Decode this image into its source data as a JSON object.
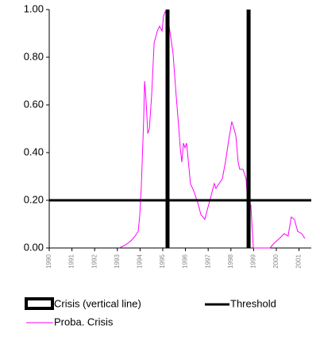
{
  "chart_data": {
    "type": "line",
    "xlim": [
      1990,
      2001.54
    ],
    "xticks": [
      1990,
      1991,
      1992,
      1993,
      1994,
      1995,
      1996,
      1997,
      1998,
      1999,
      2000,
      2001
    ],
    "ylim": [
      0,
      1
    ],
    "yticks": [
      {
        "value": 0,
        "label": "0.00"
      },
      {
        "value": 0.2,
        "label": "0.20"
      },
      {
        "value": 0.4,
        "label": "0.40"
      },
      {
        "value": 0.6,
        "label": "0.60"
      },
      {
        "value": 0.8,
        "label": "0.80"
      },
      {
        "value": 1,
        "label": "1.00"
      }
    ],
    "crisis_lines": {
      "name": "Crisis (vertical line)",
      "color": "#000000",
      "x": [
        1995.21,
        1998.78
      ]
    },
    "threshold": {
      "name": "Threshold",
      "color": "#000000",
      "value": 0.2
    },
    "series": [
      {
        "name": "Proba. Crisis",
        "color": "#ff00ff",
        "x": [
          1993.08,
          1993.36,
          1993.6,
          1993.78,
          1993.92,
          1993.99,
          1994.06,
          1994.16,
          1994.2,
          1994.27,
          1994.34,
          1994.41,
          1994.51,
          1994.62,
          1994.76,
          1994.86,
          1994.97,
          1995.03,
          1995.1,
          1995.21,
          1995.31,
          1995.45,
          1995.59,
          1995.7,
          1995.77,
          1995.84,
          1995.91,
          1995.98,
          1996.05,
          1996.12,
          1996.22,
          1996.36,
          1996.54,
          1996.68,
          1996.85,
          1996.99,
          1997.13,
          1997.27,
          1997.34,
          1997.48,
          1997.62,
          1997.76,
          1997.9,
          1998.04,
          1998.11,
          1998.22,
          1998.32,
          1998.39,
          1998.53,
          1998.67,
          1998.74,
          1998.88,
          1998.99,
          1999.37,
          1999.72,
          1999.9,
          2000.14,
          2000.35,
          2000.52,
          2000.66,
          2000.8,
          2000.94,
          2001.12,
          2001.26
        ],
        "values": [
          0,
          0.013,
          0.03,
          0.05,
          0.07,
          0.14,
          0.27,
          0.54,
          0.7,
          0.61,
          0.48,
          0.5,
          0.64,
          0.86,
          0.91,
          0.93,
          0.91,
          0.97,
          0.99,
          0.98,
          0.91,
          0.82,
          0.64,
          0.51,
          0.42,
          0.36,
          0.44,
          0.42,
          0.44,
          0.37,
          0.27,
          0.24,
          0.19,
          0.14,
          0.12,
          0.17,
          0.22,
          0.27,
          0.25,
          0.27,
          0.29,
          0.36,
          0.45,
          0.53,
          0.51,
          0.47,
          0.36,
          0.33,
          0.33,
          0.29,
          0.19,
          0.18,
          0,
          0,
          0,
          0.02,
          0.04,
          0.06,
          0.05,
          0.13,
          0.12,
          0.07,
          0.06,
          0.04
        ]
      }
    ]
  }
}
